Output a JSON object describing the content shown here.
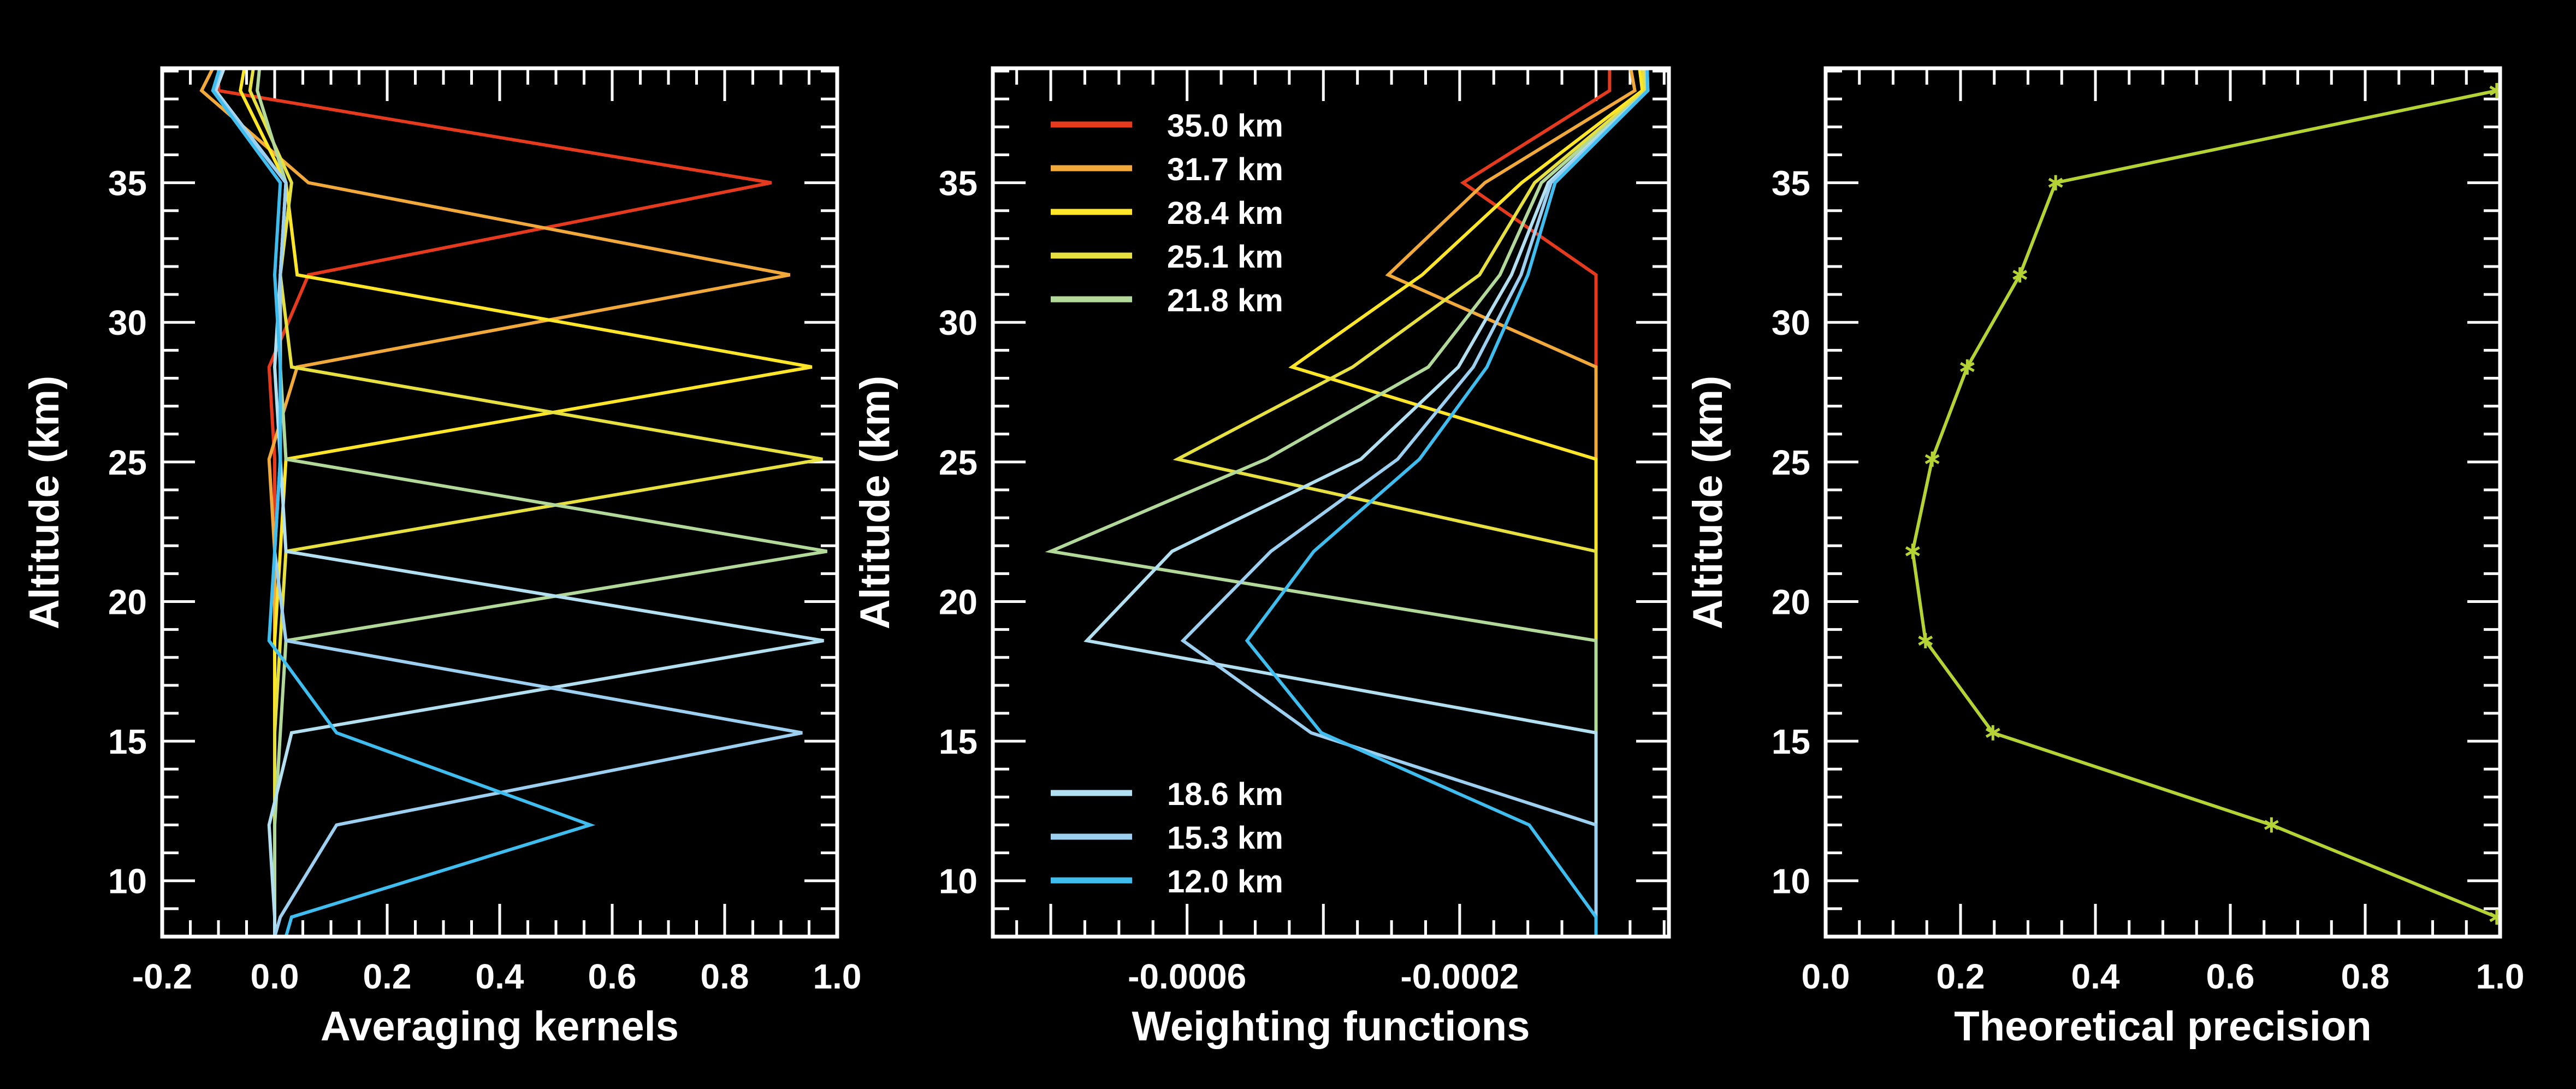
{
  "figure": {
    "background": "#000000",
    "foreground": "#ffffff"
  },
  "chart_data": [
    {
      "type": "line",
      "id": "averaging-kernels",
      "title": "",
      "xlabel": "Averaging kernels",
      "ylabel": "Altitude (km)",
      "xlim": [
        -0.2,
        1.0
      ],
      "ylim": [
        8.0,
        39.1
      ],
      "grid": false,
      "xticks": [
        -0.2,
        0.0,
        0.2,
        0.4,
        0.6,
        0.8,
        1.0
      ],
      "xtick_labels": [
        "-0.2",
        "0.0",
        "0.2",
        "0.4",
        "0.6",
        "0.8",
        "1.0"
      ],
      "x_minor_step": 0.05,
      "yticks": [
        10,
        15,
        20,
        25,
        30,
        35
      ],
      "ytick_labels": [
        "10",
        "15",
        "20",
        "25",
        "30",
        "35"
      ],
      "y_minor_step": 1,
      "altitudes": [
        39.1,
        38.3,
        35.0,
        31.7,
        28.4,
        25.1,
        21.8,
        18.6,
        15.3,
        12.0,
        8.7,
        8.0
      ],
      "series": [
        {
          "name": "35.0 km",
          "color": "#e63a1e",
          "values": [
            -0.1,
            -0.1,
            0.883,
            0.06,
            -0.01,
            0.0,
            0.0,
            0.0,
            0.0,
            0.0,
            0.0,
            0.0
          ]
        },
        {
          "name": "31.7 km",
          "color": "#f2a93b",
          "values": [
            -0.11,
            -0.13,
            0.06,
            0.916,
            0.04,
            -0.01,
            0.0,
            0.0,
            0.0,
            0.0,
            0.0,
            0.0
          ]
        },
        {
          "name": "28.4 km",
          "color": "#ffe629",
          "values": [
            -0.054,
            -0.061,
            0.02,
            0.04,
            0.955,
            0.02,
            0.01,
            0.0,
            0.0,
            0.0,
            0.0,
            0.0
          ]
        },
        {
          "name": "25.1 km",
          "color": "#e6e040",
          "values": [
            -0.038,
            -0.044,
            0.03,
            0.01,
            0.03,
            0.974,
            0.02,
            0.01,
            0.0,
            0.0,
            0.0,
            0.0
          ]
        },
        {
          "name": "21.8 km",
          "color": "#b2d89a",
          "values": [
            -0.027,
            -0.031,
            0.02,
            0.01,
            0.01,
            0.02,
            0.982,
            0.02,
            0.01,
            0.0,
            0.0,
            0.0
          ]
        },
        {
          "name": "18.6 km",
          "color": "#b3e0f0",
          "values": [
            -0.09,
            -0.105,
            0.02,
            0.01,
            0.0,
            0.01,
            0.02,
            0.976,
            0.03,
            -0.01,
            0.0,
            0.0
          ]
        },
        {
          "name": "15.3 km",
          "color": "#9dd0f0",
          "values": [
            -0.095,
            -0.108,
            0.02,
            0.01,
            0.01,
            0.01,
            0.0,
            0.02,
            0.938,
            0.11,
            0.01,
            0.0
          ]
        },
        {
          "name": "12.0 km",
          "color": "#3fbdef",
          "values": [
            -0.098,
            -0.11,
            0.01,
            0.0,
            0.01,
            0.01,
            0.0,
            -0.01,
            0.11,
            0.561,
            0.03,
            0.02
          ]
        }
      ]
    },
    {
      "type": "line",
      "id": "weighting-functions",
      "title": "",
      "xlabel": "Weighting functions",
      "ylabel": "Altitude (km)",
      "xlim": [
        -0.000885,
        0.000107
      ],
      "ylim": [
        8.0,
        39.1
      ],
      "grid": false,
      "xticks": [
        -0.0006,
        -0.0002
      ],
      "xtick_labels": [
        "-0.0006",
        "-0.0002"
      ],
      "x_major_ticks": [
        -0.0008,
        -0.0006,
        -0.0004,
        -0.0002,
        0.0
      ],
      "x_minor_step": 5e-05,
      "yticks": [
        10,
        15,
        20,
        25,
        30,
        35
      ],
      "ytick_labels": [
        "10",
        "15",
        "20",
        "25",
        "30",
        "35"
      ],
      "y_minor_step": 1,
      "legend": {
        "placement": "upper-left and lower-left",
        "upper": [
          "35.0 km",
          "31.7 km",
          "28.4 km",
          "25.1 km",
          "21.8 km"
        ],
        "lower": [
          "18.6 km",
          "15.3 km",
          "12.0 km"
        ]
      },
      "altitudes": [
        39.1,
        38.3,
        35.0,
        31.7,
        28.4,
        25.1,
        21.8,
        18.6,
        15.3,
        12.0,
        8.7,
        8.0
      ],
      "series": [
        {
          "name": "35.0 km",
          "color": "#e63a1e",
          "values": [
            2e-05,
            2e-05,
            -0.000195,
            0.0,
            0.0,
            0.0,
            0.0,
            0.0,
            0.0,
            0.0,
            0.0,
            0.0
          ]
        },
        {
          "name": "31.7 km",
          "color": "#f2a93b",
          "values": [
            5.1e-05,
            5.7e-05,
            -0.000163,
            -0.000305,
            0.0,
            0.0,
            0.0,
            0.0,
            0.0,
            0.0,
            0.0,
            0.0
          ]
        },
        {
          "name": "28.4 km",
          "color": "#ffe629",
          "values": [
            6.4e-05,
            6.8e-05,
            -0.000109,
            -0.000255,
            -0.000446,
            0.0,
            0.0,
            0.0,
            0.0,
            0.0,
            0.0,
            0.0
          ]
        },
        {
          "name": "25.1 km",
          "color": "#e6e040",
          "values": [
            6.9e-05,
            7.2e-05,
            -9e-05,
            -0.000171,
            -0.000357,
            -0.000614,
            0.0,
            0.0,
            0.0,
            0.0,
            0.0,
            0.0
          ]
        },
        {
          "name": "21.8 km",
          "color": "#b2d89a",
          "values": [
            7.3e-05,
            7.5e-05,
            -8e-05,
            -0.000141,
            -0.000246,
            -0.000484,
            -0.0008,
            0.0,
            0.0,
            0.0,
            0.0,
            0.0
          ]
        },
        {
          "name": "18.6 km",
          "color": "#b3e0f0",
          "values": [
            7.4e-05,
            7.6e-05,
            -7e-05,
            -0.000124,
            -0.000202,
            -0.000345,
            -0.000622,
            -0.000747,
            0.0,
            0.0,
            0.0,
            0.0
          ]
        },
        {
          "name": "15.3 km",
          "color": "#9dd0f0",
          "values": [
            7.5e-05,
            7.6e-05,
            -6.6e-05,
            -0.00011,
            -0.00018,
            -0.000291,
            -0.000477,
            -0.000606,
            -0.000418,
            0.0,
            0.0,
            0.0
          ]
        },
        {
          "name": "12.0 km",
          "color": "#3fbdef",
          "values": [
            7.5e-05,
            7.6e-05,
            -6e-05,
            -0.0001,
            -0.00016,
            -0.000259,
            -0.000414,
            -0.000512,
            -0.000403,
            -9.8e-05,
            0.0,
            0.0
          ]
        }
      ]
    },
    {
      "type": "line",
      "id": "theoretical-precision",
      "title": "",
      "xlabel": "Theoretical precision",
      "ylabel": "Altitude (km)",
      "xlim": [
        0.0,
        1.0
      ],
      "ylim": [
        8.0,
        39.1
      ],
      "grid": false,
      "xticks": [
        0.0,
        0.2,
        0.4,
        0.6,
        0.8,
        1.0
      ],
      "xtick_labels": [
        "0.0",
        "0.2",
        "0.4",
        "0.6",
        "0.8",
        "1.0"
      ],
      "x_minor_step": 0.05,
      "yticks": [
        10,
        15,
        20,
        25,
        30,
        35
      ],
      "ytick_labels": [
        "10",
        "15",
        "20",
        "25",
        "30",
        "35"
      ],
      "y_minor_step": 1,
      "marker": "asterisk",
      "series": [
        {
          "name": "precision",
          "color": "#b5d334",
          "altitudes": [
            38.3,
            35.0,
            31.7,
            28.4,
            25.1,
            21.8,
            18.6,
            15.3,
            12.0,
            8.7
          ],
          "values": [
            0.995,
            0.341,
            0.288,
            0.21,
            0.158,
            0.129,
            0.148,
            0.248,
            0.661,
            0.995
          ]
        }
      ]
    }
  ]
}
